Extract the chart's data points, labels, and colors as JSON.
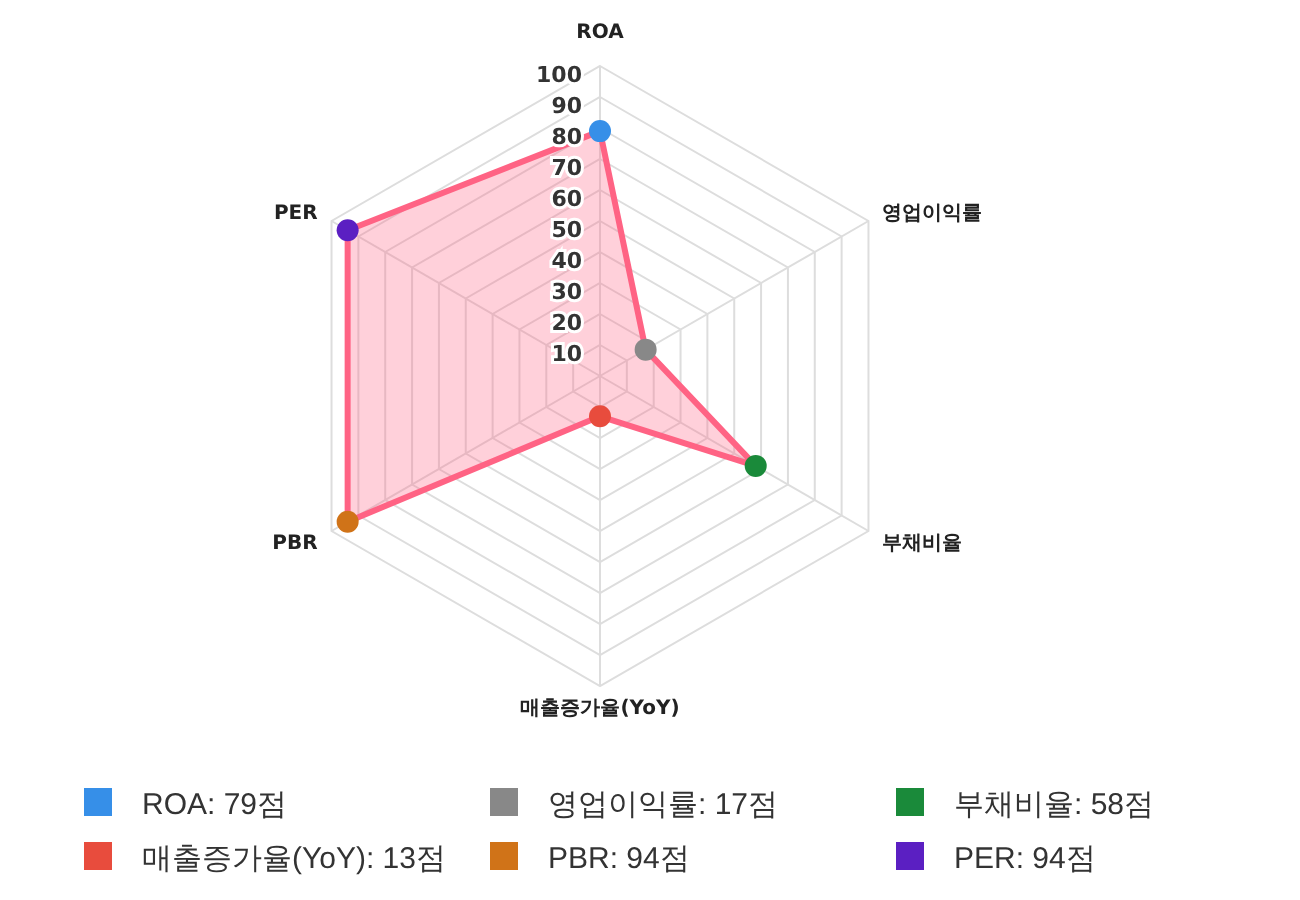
{
  "chart_data": {
    "type": "radar",
    "categories": [
      "ROA",
      "영업이익률",
      "부채비율",
      "매출증가율(YoY)",
      "PBR",
      "PER"
    ],
    "ylim": [
      0,
      100
    ],
    "yticks": [
      10,
      20,
      30,
      40,
      50,
      60,
      70,
      80,
      90,
      100
    ],
    "grid": true,
    "marker": "circle",
    "line_style": "solid",
    "series": [
      {
        "color": "#ff6384",
        "colors": [
          "#368fe8",
          "#888888",
          "#1a8a3a",
          "#e84c3d",
          "#d07318",
          "#5b1fc2"
        ],
        "values": [
          79,
          17,
          58,
          13,
          94,
          94
        ]
      }
    ],
    "annotations": [
      "ROA: 79점",
      "영업이익률: 17점",
      "부채비율: 58점",
      "매출증가율(YoY): 13점",
      "PBR: 94점",
      "PER: 94점"
    ]
  }
}
